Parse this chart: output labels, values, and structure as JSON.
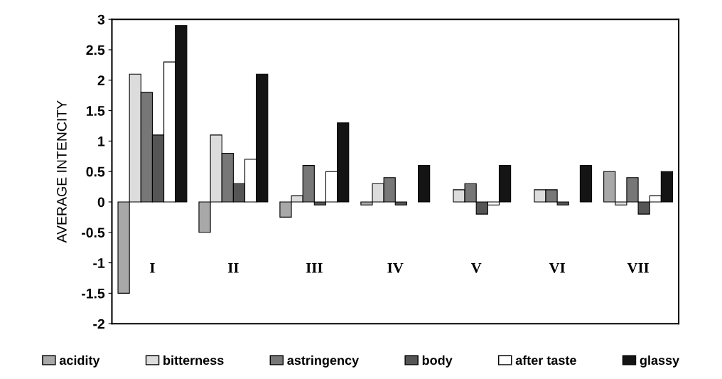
{
  "chart_data": {
    "type": "bar",
    "ylabel": "AVERAGE INTENCITY",
    "categories": [
      "I",
      "II",
      "III",
      "IV",
      "V",
      "VI",
      "VII"
    ],
    "series": [
      {
        "name": "acidity",
        "color": "#a8a8a8",
        "values": [
          -1.5,
          -0.5,
          -0.25,
          -0.05,
          null,
          null,
          0.5
        ]
      },
      {
        "name": "bitterness",
        "color": "#dcdcdc",
        "values": [
          2.1,
          1.1,
          0.1,
          0.3,
          0.2,
          0.2,
          -0.05
        ]
      },
      {
        "name": "astringency",
        "color": "#777777",
        "values": [
          1.8,
          0.8,
          0.6,
          0.4,
          0.3,
          0.2,
          0.4
        ]
      },
      {
        "name": "body",
        "color": "#555555",
        "values": [
          1.1,
          0.3,
          -0.05,
          -0.05,
          -0.2,
          -0.05,
          -0.2
        ]
      },
      {
        "name": "after taste",
        "color": "#ffffff",
        "values": [
          2.3,
          0.7,
          0.5,
          null,
          -0.05,
          null,
          0.1
        ]
      },
      {
        "name": "glassy",
        "color": "#141414",
        "values": [
          2.9,
          2.1,
          1.3,
          0.6,
          0.6,
          0.6,
          0.5
        ]
      }
    ],
    "ylim": [
      -2,
      3
    ],
    "yticks": [
      -2,
      -1.5,
      -1,
      -0.5,
      0,
      0.5,
      1,
      1.5,
      2,
      2.5,
      3
    ],
    "grid": false,
    "legend": "bottom"
  }
}
